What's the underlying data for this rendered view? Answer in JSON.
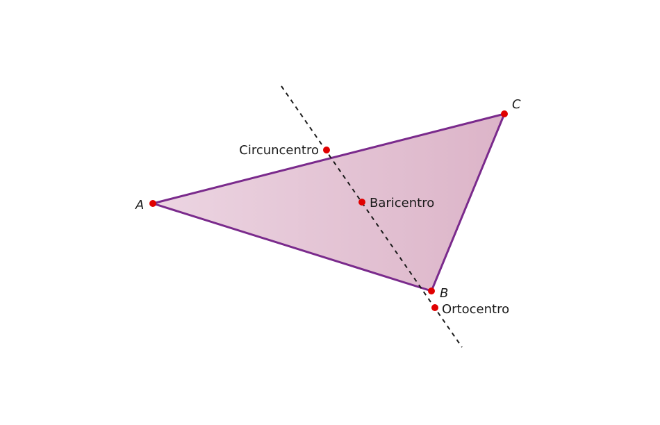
{
  "diagram": {
    "vertices": {
      "A": "A",
      "B": "B",
      "C": "C"
    },
    "points": {
      "circumcenter": "Circuncentro",
      "centroid": "Baricentro",
      "orthocenter": "Ortocentro"
    },
    "colors": {
      "triangle_fill_left": "#ecd5e2",
      "triangle_fill_right": "#dcb4c8",
      "triangle_stroke": "#7a2a8c",
      "point": "#e00000",
      "euler_line": "#1a1a1a"
    }
  }
}
